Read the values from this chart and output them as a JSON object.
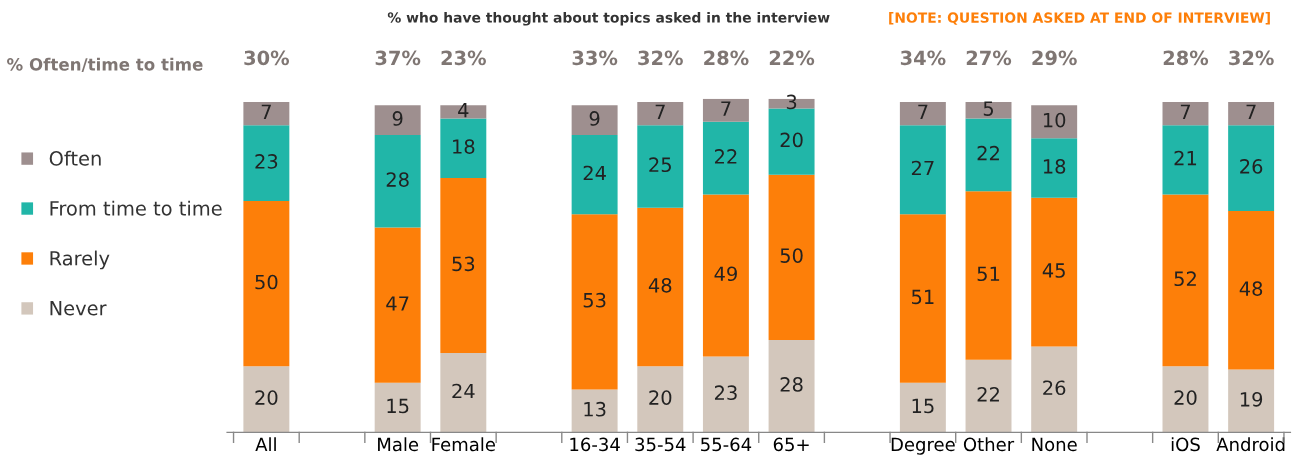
{
  "chart_data": {
    "type": "bar",
    "stacked": true,
    "title": "% who have thought about topics asked in the interview",
    "subtitle": "[NOTE: QUESTION ASKED AT END OF INTERVIEW]",
    "annotations": [
      "% Often/time to time",
      "30%",
      "37%",
      "23%",
      "33%",
      "32%",
      "28%",
      "22%",
      "34%",
      "27%",
      "29%",
      "28%",
      "32%"
    ],
    "categories": [
      "All",
      null,
      "Male",
      "Female",
      null,
      "16-34",
      "35-54",
      "55-64",
      "65+",
      null,
      "Degree",
      "Other",
      "None",
      null,
      "iOS",
      "Android"
    ],
    "series": [
      {
        "name": "Never",
        "color": "#d3c7bc",
        "values": [
          20,
          null,
          15,
          24,
          null,
          13,
          20,
          23,
          28,
          null,
          15,
          22,
          26,
          null,
          20,
          19
        ]
      },
      {
        "name": "Rarely",
        "color": "#fd7f09",
        "values": [
          50,
          null,
          47,
          53,
          null,
          53,
          48,
          49,
          50,
          null,
          51,
          51,
          45,
          null,
          52,
          48
        ]
      },
      {
        "name": "From time to time",
        "color": "#21b6a8",
        "values": [
          23,
          null,
          28,
          18,
          null,
          24,
          25,
          22,
          20,
          null,
          27,
          22,
          18,
          null,
          21,
          26
        ]
      },
      {
        "name": "Often",
        "color": "#9e8f8f",
        "values": [
          7,
          null,
          9,
          4,
          null,
          9,
          7,
          7,
          3,
          null,
          7,
          5,
          10,
          null,
          7,
          7
        ]
      }
    ],
    "ylim": [
      0,
      101
    ],
    "tick_labels": "x",
    "data_labels": true,
    "legend": "left",
    "grid": false
  }
}
